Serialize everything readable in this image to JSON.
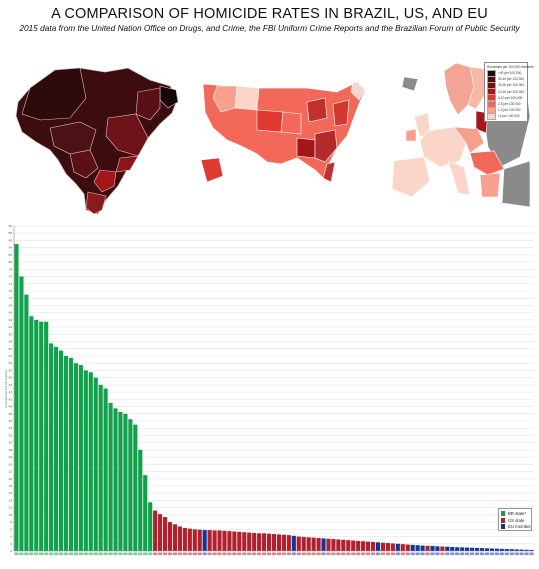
{
  "header": {
    "title": "A COMPARISON OF HOMICIDE RATES IN BRAZIL, US, AND EU",
    "subtitle": "2015 data from the United Nation Office on Drugs, and Crime, the FBI Uniform Crime Reports and the Brazilian Forum of Public Security"
  },
  "maps": {
    "legend_title": "Homicides per 100,000 residents",
    "legend_items": [
      {
        "label": ">40 per 100,000",
        "color": "#1f0c0c"
      },
      {
        "label": "30-40 per 100,000",
        "color": "#4a1214"
      },
      {
        "label": "20-30 per 100,000",
        "color": "#6e1418"
      },
      {
        "label": "10-20 per 100,000",
        "color": "#a4161a"
      },
      {
        "label": "5-10 per 100,000",
        "color": "#e0392f"
      },
      {
        "label": "2-5 per 100,000",
        "color": "#f2695a"
      },
      {
        "label": "1-2 per 100,000",
        "color": "#f7a08e"
      },
      {
        "label": "<1 per 100,000",
        "color": "#fbd6c8"
      }
    ]
  },
  "chart_data": {
    "type": "bar",
    "ylabel": "Homicides per 100,000 residents",
    "ylim": [
      0,
      90
    ],
    "yticks": [
      0,
      2,
      4,
      6,
      8,
      10,
      12,
      14,
      16,
      18,
      20,
      22,
      24,
      26,
      28,
      30,
      32,
      34,
      36,
      38,
      40,
      42,
      44,
      46,
      48,
      50,
      52,
      54,
      56,
      58,
      60,
      62,
      64,
      66,
      68,
      70,
      72,
      74,
      76,
      78,
      80,
      82,
      84,
      86,
      88,
      90
    ],
    "grid": true,
    "legend_position": "bottom-right",
    "groups": [
      {
        "label": "BR state*",
        "color": "#12a14b",
        "code": "BR"
      },
      {
        "label": "US state",
        "color": "#b0202d",
        "code": "US"
      },
      {
        "label": "EU member",
        "color": "#12359c",
        "code": "EU"
      }
    ],
    "bars": [
      {
        "group": "BR",
        "value": 85.0
      },
      {
        "group": "BR",
        "value": 76.0
      },
      {
        "group": "BR",
        "value": 71.0
      },
      {
        "group": "BR",
        "value": 65.0
      },
      {
        "group": "BR",
        "value": 64.0
      },
      {
        "group": "BR",
        "value": 63.5
      },
      {
        "group": "BR",
        "value": 63.5
      },
      {
        "group": "BR",
        "value": 57.5
      },
      {
        "group": "BR",
        "value": 56.5
      },
      {
        "group": "BR",
        "value": 55.5
      },
      {
        "group": "BR",
        "value": 54.0
      },
      {
        "group": "BR",
        "value": 53.5
      },
      {
        "group": "BR",
        "value": 52.0
      },
      {
        "group": "BR",
        "value": 51.5
      },
      {
        "group": "BR",
        "value": 50.0
      },
      {
        "group": "BR",
        "value": 49.5
      },
      {
        "group": "BR",
        "value": 48.0
      },
      {
        "group": "BR",
        "value": 46.0
      },
      {
        "group": "BR",
        "value": 45.0
      },
      {
        "group": "BR",
        "value": 41.0
      },
      {
        "group": "BR",
        "value": 39.5
      },
      {
        "group": "BR",
        "value": 38.5
      },
      {
        "group": "BR",
        "value": 38.0
      },
      {
        "group": "BR",
        "value": 36.5
      },
      {
        "group": "BR",
        "value": 35.0
      },
      {
        "group": "BR",
        "value": 28.0
      },
      {
        "group": "BR",
        "value": 21.0
      },
      {
        "group": "BR",
        "value": 13.5
      },
      {
        "group": "US",
        "value": 11.2
      },
      {
        "group": "US",
        "value": 10.2
      },
      {
        "group": "US",
        "value": 9.4
      },
      {
        "group": "US",
        "value": 8.0
      },
      {
        "group": "US",
        "value": 7.4
      },
      {
        "group": "US",
        "value": 6.8
      },
      {
        "group": "US",
        "value": 6.4
      },
      {
        "group": "US",
        "value": 6.2
      },
      {
        "group": "US",
        "value": 6.0
      },
      {
        "group": "US",
        "value": 5.9
      },
      {
        "group": "EU",
        "value": 5.8
      },
      {
        "group": "US",
        "value": 5.8
      },
      {
        "group": "US",
        "value": 5.7
      },
      {
        "group": "US",
        "value": 5.7
      },
      {
        "group": "US",
        "value": 5.6
      },
      {
        "group": "US",
        "value": 5.5
      },
      {
        "group": "US",
        "value": 5.4
      },
      {
        "group": "US",
        "value": 5.3
      },
      {
        "group": "US",
        "value": 5.2
      },
      {
        "group": "US",
        "value": 5.1
      },
      {
        "group": "US",
        "value": 5.0
      },
      {
        "group": "US",
        "value": 4.9
      },
      {
        "group": "US",
        "value": 4.9
      },
      {
        "group": "US",
        "value": 4.8
      },
      {
        "group": "US",
        "value": 4.7
      },
      {
        "group": "US",
        "value": 4.6
      },
      {
        "group": "US",
        "value": 4.5
      },
      {
        "group": "US",
        "value": 4.4
      },
      {
        "group": "EU",
        "value": 4.2
      },
      {
        "group": "US",
        "value": 4.0
      },
      {
        "group": "US",
        "value": 3.9
      },
      {
        "group": "US",
        "value": 3.8
      },
      {
        "group": "US",
        "value": 3.7
      },
      {
        "group": "US",
        "value": 3.6
      },
      {
        "group": "EU",
        "value": 3.5
      },
      {
        "group": "US",
        "value": 3.4
      },
      {
        "group": "US",
        "value": 3.3
      },
      {
        "group": "US",
        "value": 3.2
      },
      {
        "group": "US",
        "value": 3.1
      },
      {
        "group": "US",
        "value": 3.0
      },
      {
        "group": "US",
        "value": 2.9
      },
      {
        "group": "US",
        "value": 2.8
      },
      {
        "group": "US",
        "value": 2.7
      },
      {
        "group": "US",
        "value": 2.6
      },
      {
        "group": "US",
        "value": 2.5
      },
      {
        "group": "EU",
        "value": 2.4
      },
      {
        "group": "US",
        "value": 2.3
      },
      {
        "group": "US",
        "value": 2.2
      },
      {
        "group": "US",
        "value": 2.1
      },
      {
        "group": "EU",
        "value": 2.0
      },
      {
        "group": "US",
        "value": 1.9
      },
      {
        "group": "US",
        "value": 1.8
      },
      {
        "group": "EU",
        "value": 1.7
      },
      {
        "group": "EU",
        "value": 1.6
      },
      {
        "group": "EU",
        "value": 1.5
      },
      {
        "group": "US",
        "value": 1.45
      },
      {
        "group": "EU",
        "value": 1.4
      },
      {
        "group": "EU",
        "value": 1.3
      },
      {
        "group": "US",
        "value": 1.25
      },
      {
        "group": "EU",
        "value": 1.2
      },
      {
        "group": "EU",
        "value": 1.1
      },
      {
        "group": "EU",
        "value": 1.05
      },
      {
        "group": "EU",
        "value": 1.0
      },
      {
        "group": "EU",
        "value": 0.95
      },
      {
        "group": "EU",
        "value": 0.9
      },
      {
        "group": "EU",
        "value": 0.85
      },
      {
        "group": "EU",
        "value": 0.8
      },
      {
        "group": "EU",
        "value": 0.75
      },
      {
        "group": "EU",
        "value": 0.7
      },
      {
        "group": "EU",
        "value": 0.65
      },
      {
        "group": "EU",
        "value": 0.6
      },
      {
        "group": "EU",
        "value": 0.55
      },
      {
        "group": "EU",
        "value": 0.5
      },
      {
        "group": "EU",
        "value": 0.45
      },
      {
        "group": "EU",
        "value": 0.4
      },
      {
        "group": "EU",
        "value": 0.35
      },
      {
        "group": "EU",
        "value": 0.3
      }
    ]
  }
}
